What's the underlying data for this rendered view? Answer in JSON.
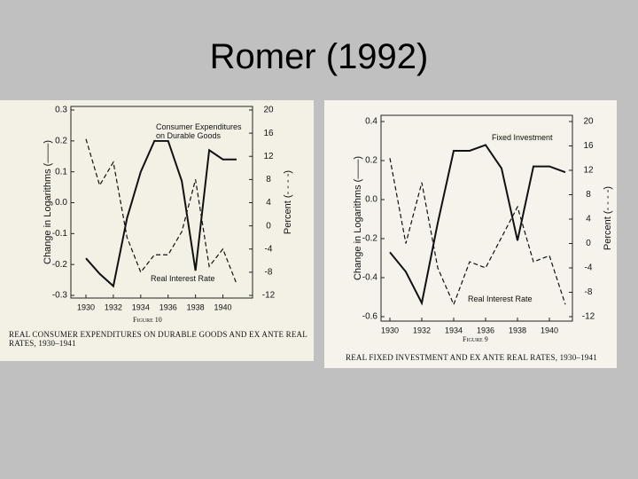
{
  "slide_title": "Romer (1992)",
  "chart_data": [
    {
      "type": "line",
      "figure": "Figure 10",
      "caption": "REAL CONSUMER EXPENDITURES ON DURABLE GOODS AND EX ANTE REAL RATES, 1930–1941",
      "y_label": "Change in Logarithms (——)",
      "y2_label": "Percent (- - - -)",
      "x": [
        1930,
        1931,
        1932,
        1933,
        1934,
        1935,
        1936,
        1937,
        1938,
        1939,
        1940,
        1941
      ],
      "xlim": [
        1930,
        1941
      ],
      "xticks": [
        1930,
        1932,
        1934,
        1936,
        1938,
        1940
      ],
      "ylim": [
        -0.3,
        0.3
      ],
      "yticks": [
        0.3,
        0.2,
        0.1,
        {
          "value": 0,
          "label": "0.0"
        },
        -0.1,
        -0.2,
        -0.3
      ],
      "y2lim": [
        -12,
        20
      ],
      "y2ticks": [
        20,
        16,
        12,
        8,
        4,
        0,
        -4,
        -8,
        -12
      ],
      "series": [
        {
          "name": "Consumer Expenditures on Durable Goods",
          "color": "#111111",
          "dash": false,
          "values": [
            -0.18,
            -0.23,
            -0.27,
            -0.05,
            0.1,
            0.2,
            0.2,
            0.07,
            -0.22,
            0.17,
            0.14,
            0.14
          ]
        },
        {
          "name": "Real Interest Rate",
          "color": "#111111",
          "dash": true,
          "axis": "y2",
          "values": [
            15,
            7,
            11,
            -2,
            -8,
            -5,
            -5,
            -1,
            8,
            -7,
            -4,
            -10
          ]
        }
      ]
    },
    {
      "type": "line",
      "figure": "Figure 9",
      "caption": "REAL FIXED INVESTMENT AND EX ANTE REAL RATES, 1930–1941",
      "y_label": "Change in Logarithms (——)",
      "y2_label": "Percent (- - - -)",
      "x": [
        1930,
        1931,
        1932,
        1933,
        1934,
        1935,
        1936,
        1937,
        1938,
        1939,
        1940,
        1941
      ],
      "xlim": [
        1930,
        1941
      ],
      "xticks": [
        1930,
        1932,
        1934,
        1936,
        1938,
        1940
      ],
      "ylim": [
        -0.6,
        0.4
      ],
      "yticks": [
        0.4,
        0.2,
        {
          "value": 0,
          "label": "0.0"
        },
        -0.2,
        -0.4,
        -0.6
      ],
      "y2lim": [
        -12,
        20
      ],
      "y2ticks": [
        20,
        16,
        12,
        8,
        4,
        0,
        -4,
        -8,
        -12
      ],
      "series": [
        {
          "name": "Fixed Investment",
          "color": "#111111",
          "dash": false,
          "values": [
            -0.27,
            -0.37,
            -0.53,
            -0.12,
            0.25,
            0.25,
            0.28,
            0.16,
            -0.21,
            0.17,
            0.17,
            0.14
          ]
        },
        {
          "name": "Real Interest Rate",
          "color": "#111111",
          "dash": true,
          "axis": "y2",
          "values": [
            14,
            0,
            10,
            -4,
            -10,
            -3,
            -4,
            1,
            6,
            -3,
            -2,
            -10
          ]
        }
      ]
    }
  ]
}
